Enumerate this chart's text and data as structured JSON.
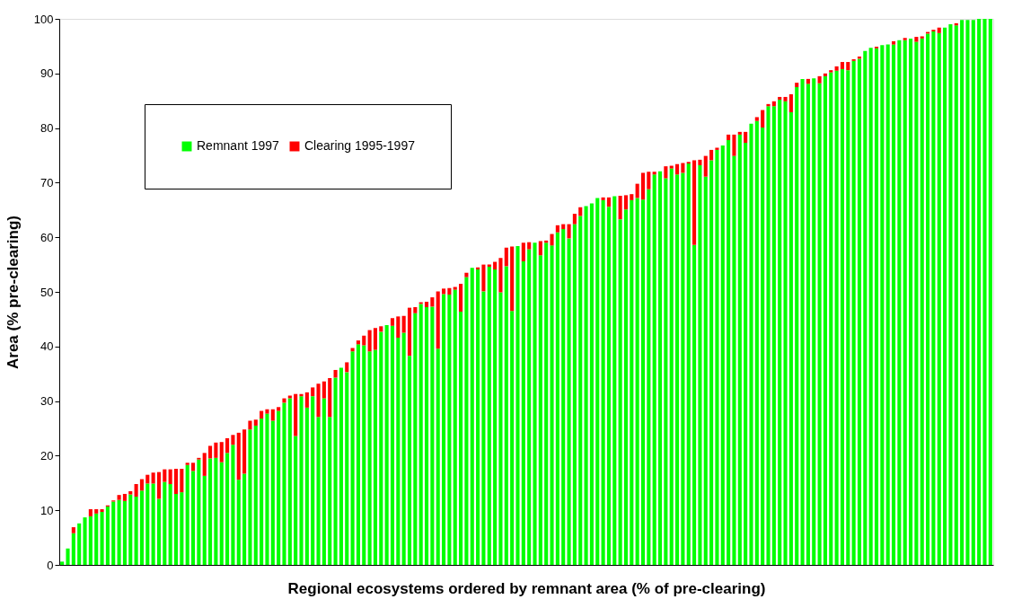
{
  "chart_data": {
    "type": "bar",
    "stacked": true,
    "xlabel": "Regional ecosystems ordered by remnant area (% of pre-clearing)",
    "ylabel": "Area (% pre-clearing)",
    "categories": [
      null,
      null,
      null,
      null,
      null,
      null,
      null,
      null,
      null,
      null,
      null,
      null,
      null,
      null,
      null,
      null,
      null,
      null,
      null,
      null,
      null,
      null,
      null,
      null,
      null,
      null,
      null,
      null,
      null,
      null,
      null,
      null,
      null,
      null,
      null,
      null,
      null,
      null,
      null,
      null,
      null,
      null,
      null,
      null,
      null,
      null,
      null,
      null,
      null,
      null,
      null,
      null,
      null,
      null,
      null,
      null,
      null,
      null,
      null,
      null,
      null,
      null,
      null,
      null,
      null,
      null,
      null,
      null,
      null,
      null,
      null,
      null,
      null,
      null,
      null,
      null,
      null,
      null,
      null,
      null,
      null,
      null,
      null,
      null,
      null,
      null,
      null,
      null,
      null,
      null,
      null,
      null,
      null,
      null,
      null,
      null,
      null,
      null,
      null,
      null,
      null,
      null,
      null,
      null,
      null,
      null,
      null,
      null,
      null,
      null,
      null,
      null,
      null,
      null,
      null,
      null,
      null,
      null,
      null,
      null,
      null,
      null,
      null,
      null,
      null,
      null,
      null,
      null,
      null,
      null,
      null,
      null,
      null,
      null,
      null,
      null,
      null,
      null,
      null,
      null,
      null,
      null,
      null,
      null,
      null,
      null,
      null,
      null,
      null,
      null,
      null,
      null,
      null,
      null,
      null,
      null,
      null,
      null,
      null,
      null,
      null,
      null,
      null,
      null
    ],
    "series": [
      {
        "name": "Remnant 1997",
        "color": "#00ff00",
        "values": [
          0.6,
          3.0,
          5.8,
          7.6,
          8.7,
          8.9,
          9.4,
          9.7,
          10.7,
          11.6,
          11.9,
          11.7,
          12.9,
          12.5,
          13.6,
          14.9,
          14.9,
          12.1,
          15.2,
          14.8,
          13.0,
          13.3,
          18.3,
          17.2,
          19.3,
          16.3,
          19.5,
          19.6,
          18.8,
          20.5,
          22.0,
          15.6,
          16.7,
          24.8,
          25.5,
          26.8,
          27.7,
          26.4,
          28.2,
          29.7,
          30.5,
          23.6,
          30.9,
          28.8,
          30.9,
          27.1,
          30.5,
          27.1,
          34.3,
          36.1,
          35.3,
          39.1,
          40.4,
          40.2,
          39.1,
          39.4,
          42.7,
          43.9,
          43.8,
          41.6,
          42.5,
          38.3,
          46.1,
          47.8,
          47.2,
          47.3,
          39.6,
          49.6,
          49.5,
          50.4,
          46.4,
          52.7,
          54.4,
          54.1,
          50.1,
          54.6,
          54.1,
          49.9,
          54.7,
          46.5,
          58.4,
          55.6,
          57.8,
          59.0,
          56.7,
          59.0,
          58.5,
          60.9,
          61.5,
          59.8,
          62.4,
          63.9,
          65.7,
          66.2,
          67.2,
          66.8,
          65.6,
          67.5,
          63.3,
          65.1,
          66.8,
          67.2,
          66.9,
          68.8,
          71.5,
          72.1,
          70.8,
          72.6,
          71.5,
          71.8,
          73.5,
          58.6,
          73.2,
          71.1,
          74.1,
          76.0,
          76.8,
          77.8,
          74.9,
          78.8,
          77.3,
          80.8,
          81.3,
          80.1,
          84.0,
          84.0,
          85.2,
          84.9,
          82.9,
          87.5,
          89.0,
          88.1,
          89.1,
          88.2,
          89.5,
          90.2,
          90.5,
          90.8,
          90.6,
          92.3,
          92.7,
          94.1,
          94.7,
          94.6,
          95.2,
          95.3,
          95.3,
          96.1,
          96.1,
          96.4,
          95.8,
          96.4,
          97.3,
          97.7,
          97.4,
          98.4,
          99.0,
          98.8,
          99.8,
          99.8,
          99.8,
          100,
          100,
          100
        ]
      },
      {
        "name": "Clearing 1995-1997",
        "color": "#ff0000",
        "values": [
          null,
          null,
          1.1,
          null,
          null,
          1.3,
          0.8,
          0.5,
          0.2,
          0.2,
          0.9,
          1.3,
          0.6,
          2.3,
          2.1,
          1.6,
          2.0,
          4.9,
          2.3,
          2.7,
          4.6,
          4.3,
          0.4,
          1.5,
          0.3,
          4.2,
          2.3,
          2.8,
          3.7,
          2.7,
          1.8,
          8.6,
          8.1,
          1.6,
          1.1,
          1.4,
          0.8,
          2.1,
          0.7,
          0.8,
          0.5,
          7.7,
          0.4,
          2.8,
          1.6,
          6.1,
          3.1,
          7.1,
          1.4,
          null,
          1.8,
          0.6,
          0.7,
          1.8,
          3.9,
          4.0,
          1.0,
          null,
          1.4,
          3.9,
          3.1,
          8.8,
          1.1,
          0.3,
          1.0,
          1.7,
          10.5,
          1.0,
          1.2,
          0.5,
          5.1,
          0.8,
          null,
          0.4,
          4.9,
          0.4,
          1.4,
          6.3,
          3.4,
          11.8,
          null,
          3.4,
          1.3,
          null,
          2.6,
          0.4,
          2.1,
          1.3,
          0.9,
          2.6,
          1.9,
          1.6,
          null,
          null,
          null,
          0.5,
          1.7,
          null,
          4.3,
          2.6,
          1.1,
          2.6,
          4.9,
          3.2,
          0.5,
          null,
          2.2,
          0.5,
          1.9,
          1.8,
          0.3,
          15.5,
          1.0,
          3.8,
          1.9,
          0.4,
          null,
          1.0,
          3.9,
          0.5,
          2.0,
          null,
          0.7,
          3.2,
          0.4,
          0.9,
          0.5,
          0.8,
          3.3,
          0.8,
          null,
          0.9,
          null,
          1.3,
          0.5,
          0.4,
          0.8,
          1.3,
          1.5,
          0.3,
          0.4,
          null,
          null,
          0.3,
          null,
          null,
          0.6,
          null,
          0.4,
          null,
          0.9,
          0.4,
          0.3,
          0.3,
          1.0,
          null,
          null,
          0.4,
          null,
          null,
          null,
          null,
          null,
          null
        ]
      }
    ],
    "ylim": [
      0,
      100
    ],
    "yticks": [
      0,
      10,
      20,
      30,
      40,
      50,
      60,
      70,
      80,
      90,
      100
    ],
    "grid": false,
    "legend": "top left"
  }
}
